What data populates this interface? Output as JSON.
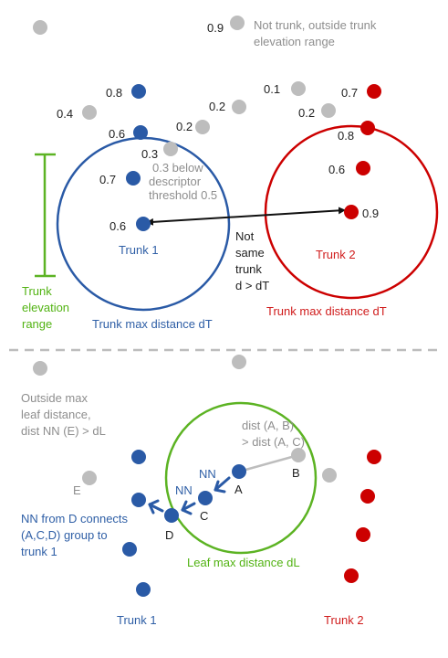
{
  "colors": {
    "trunk1": "#2a5aa6",
    "trunk2": "#cc0000",
    "gray": "#bdbdbd",
    "green": "#5cb323",
    "text_gray": "#8e8e8e",
    "black": "#111111"
  },
  "top": {
    "scores": {
      "gray_top": "0.9",
      "b_08": "0.8",
      "g_04": "0.4",
      "b_06_top": "0.6",
      "g_02_a": "0.2",
      "g_02_b": "0.2",
      "g_03": "0.3",
      "b_07": "0.7",
      "b_06_center": "0.6",
      "g_01": "0.1",
      "g_02_c": "0.2",
      "r_07": "0.7",
      "r_08": "0.8",
      "r_06": "0.6",
      "r_09": "0.9"
    },
    "annotations": {
      "not_trunk_l1": "Not trunk, outside trunk",
      "not_trunk_l2": "elevation range",
      "below_l1": "0.3 below",
      "below_l2": "descriptor",
      "below_l3": "threshold 0.5",
      "not_same_l1": "Not",
      "not_same_l2": "same",
      "not_same_l3": "trunk",
      "not_same_l4": "d > dT",
      "elev_l1": "Trunk",
      "elev_l2": "elevation",
      "elev_l3": "range"
    },
    "trunk1_label": "Trunk 1",
    "trunk2_label": "Trunk 2",
    "trunk1_max": "Trunk max distance dT",
    "trunk2_max": "Trunk max distance dT"
  },
  "bottom": {
    "outside_l1": "Outside max",
    "outside_l2": "leaf distance,",
    "outside_l3": "dist NN (E) > dL",
    "dist_l1": "dist (A, B)",
    "dist_l2": "> dist (A, C)",
    "points": {
      "a": "A",
      "b": "B",
      "c": "C",
      "d": "D",
      "e": "E"
    },
    "nn_1": "NN",
    "nn_2": "NN",
    "nn_from_l1": "NN from D connects",
    "nn_from_l2": "(A,C,D) group to",
    "nn_from_l3": "trunk 1",
    "leaf_max": "Leaf max distance dL",
    "trunk1_label": "Trunk 1",
    "trunk2_label": "Trunk 2"
  }
}
